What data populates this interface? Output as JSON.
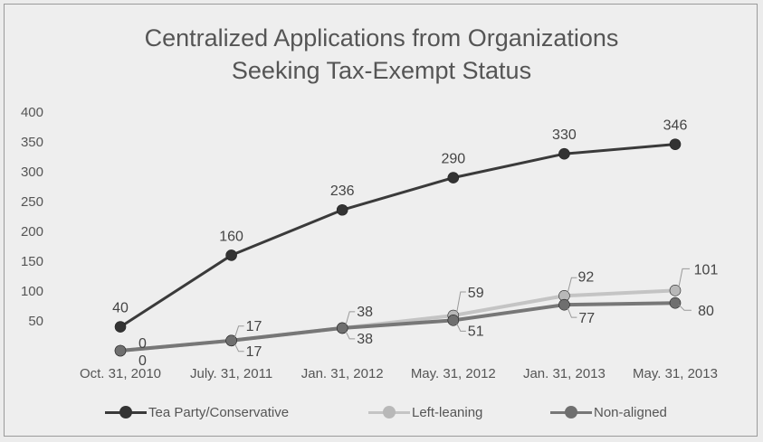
{
  "chart_data": {
    "type": "line",
    "title": [
      "Centralized Applications from Organizations",
      "Seeking Tax-Exempt Status"
    ],
    "categories": [
      "Oct. 31, 2010",
      "July. 31, 2011",
      "Jan. 31, 2012",
      "May. 31, 2012",
      "Jan. 31, 2013",
      "May. 31, 2013"
    ],
    "ylim": [
      0,
      400
    ],
    "yticks": [
      0,
      50,
      100,
      150,
      200,
      250,
      300,
      350,
      400
    ],
    "grid": false,
    "legend_position": "bottom",
    "series": [
      {
        "name": "Tea Party/Conservative",
        "values": [
          40,
          160,
          236,
          290,
          330,
          346
        ],
        "color": "#3a3a3a",
        "dot": "#333333"
      },
      {
        "name": "Left-leaning",
        "values": [
          0,
          17,
          38,
          59,
          92,
          101
        ],
        "color": "#c4c4c4",
        "dot": "#b8b8b8"
      },
      {
        "name": "Non-aligned",
        "values": [
          0,
          17,
          38,
          51,
          77,
          80
        ],
        "color": "#777777",
        "dot": "#6f6f6f"
      }
    ]
  }
}
